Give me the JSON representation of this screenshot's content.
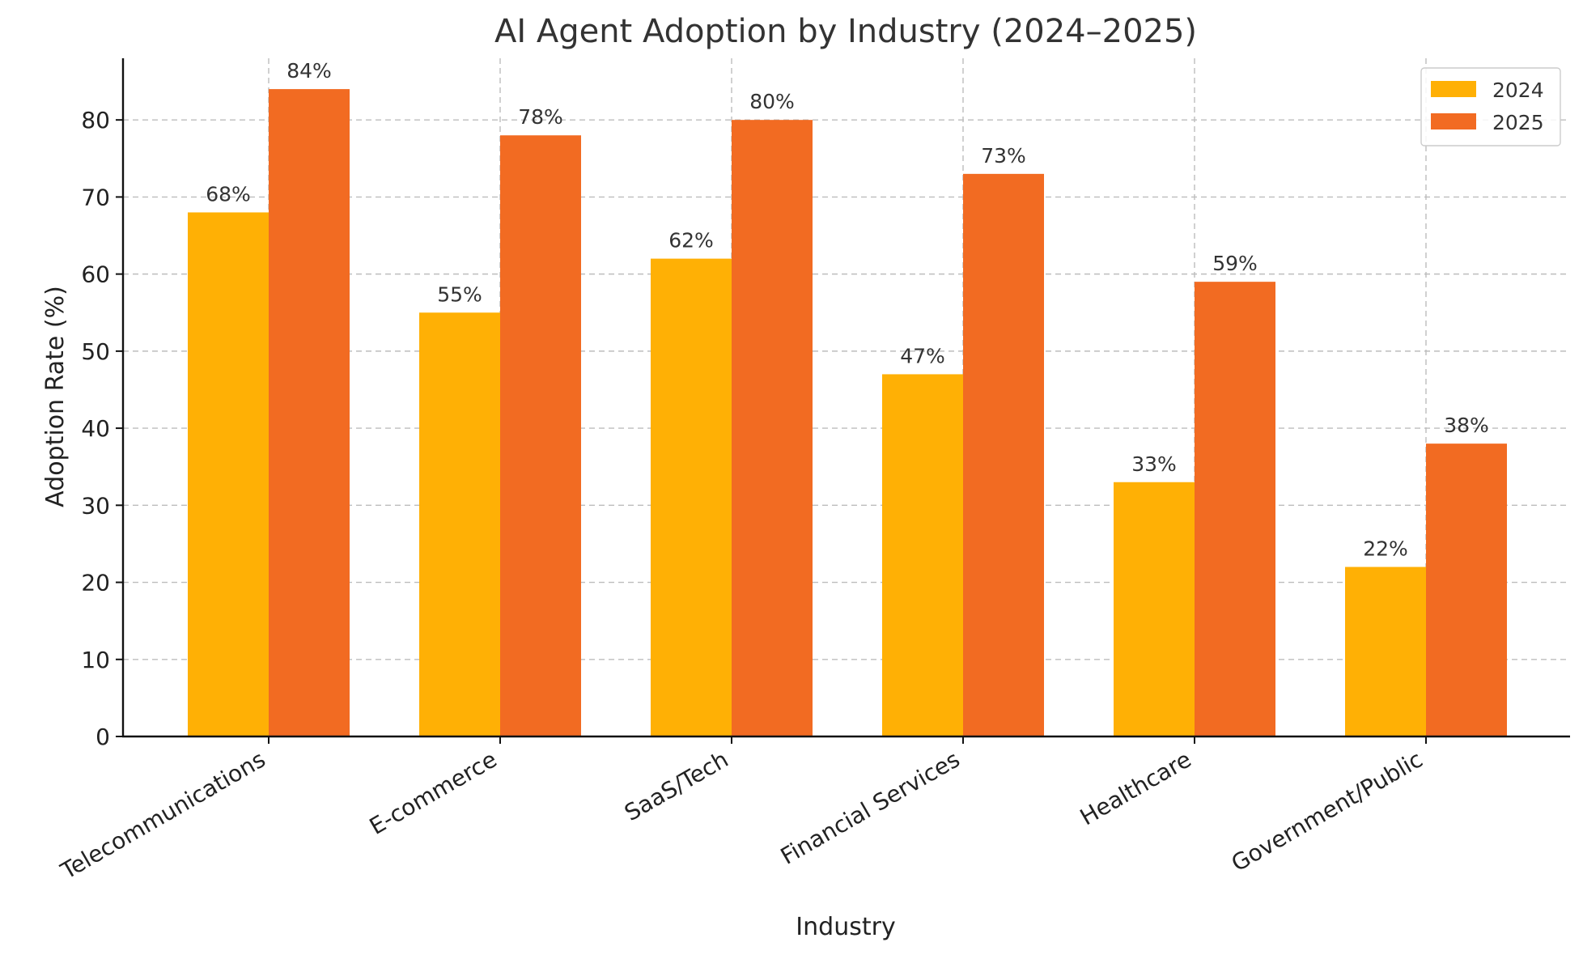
{
  "chart_data": {
    "type": "bar",
    "title": "AI Agent Adoption by Industry (2024–2025)",
    "xlabel": "Industry",
    "ylabel": "Adoption Rate (%)",
    "categories": [
      "Telecommunications",
      "E-commerce",
      "SaaS/Tech",
      "Financial Services",
      "Healthcare",
      "Government/Public"
    ],
    "series": [
      {
        "name": "2024",
        "color": "#FFB005",
        "values": [
          68,
          55,
          62,
          47,
          33,
          22
        ]
      },
      {
        "name": "2025",
        "color": "#F26B22",
        "values": [
          84,
          78,
          80,
          73,
          59,
          38
        ]
      }
    ],
    "value_label_suffix": "%",
    "ylim": [
      0,
      88
    ],
    "yticks": [
      0,
      10,
      20,
      30,
      40,
      50,
      60,
      70,
      80
    ],
    "grid": true,
    "legend": "top-right"
  }
}
